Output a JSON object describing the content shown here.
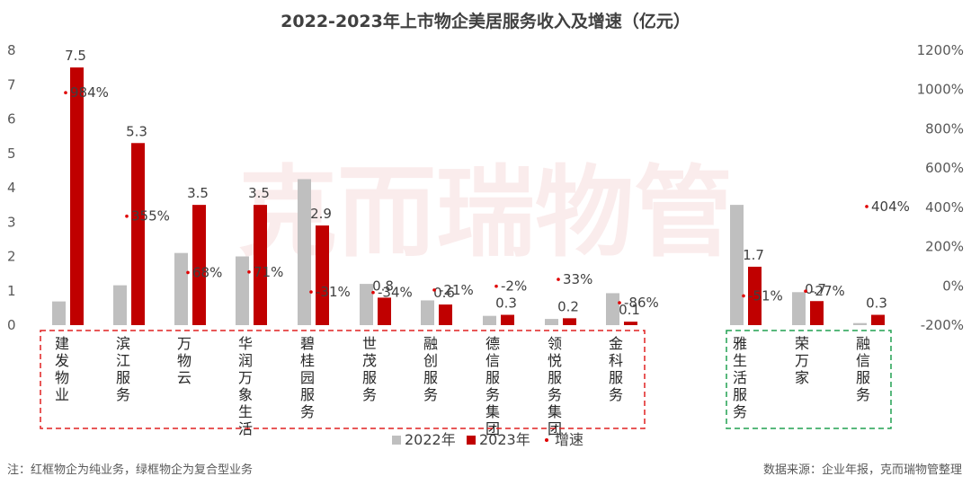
{
  "chart_data": {
    "type": "bar",
    "title": "2022-2023年上市物企美居服务收入及增速（亿元）",
    "watermark": "克而瑞物管",
    "categories": [
      "建发物业",
      "滨江服务",
      "万物云",
      "华润万象生活",
      "碧桂园服务",
      "世茂服务",
      "融创服务",
      "德信服务集团",
      "领悦服务集团",
      "金科服务",
      "雅生活服务",
      "荣万家",
      "融信服务"
    ],
    "groups": [
      {
        "name": "红框物企",
        "categories": [
          "建发物业",
          "滨江服务",
          "万物云",
          "华润万象生活",
          "碧桂园服务",
          "世茂服务",
          "融创服务",
          "德信服务集团",
          "领悦服务集团",
          "金科服务"
        ],
        "border_color": "#e02020"
      },
      {
        "name": "绿框物企",
        "categories": [
          "雅生活服务",
          "荣万家",
          "融信服务"
        ],
        "border_color": "#20a050"
      }
    ],
    "series": [
      {
        "name": "2022年",
        "color": "#bfbfbf",
        "values": [
          0.69,
          1.16,
          2.1,
          2.0,
          4.25,
          1.2,
          0.72,
          0.27,
          0.18,
          0.93,
          3.5,
          0.96,
          0.06
        ]
      },
      {
        "name": "2023年",
        "color": "#c00000",
        "values": [
          7.5,
          5.3,
          3.5,
          3.5,
          2.9,
          0.8,
          0.6,
          0.3,
          0.2,
          0.1,
          1.7,
          0.7,
          0.3
        ]
      }
    ],
    "value_labels": [
      "7.5",
      "5.3",
      "3.5",
      "3.5",
      "2.9",
      "0.8",
      "0.6",
      "0.3",
      "0.2",
      "0.1",
      "1.7",
      "0.7",
      "0.3"
    ],
    "growth": {
      "name": "增速",
      "color": "#e00000",
      "values": [
        984,
        355,
        68,
        71,
        -31,
        -34,
        -21,
        -2,
        33,
        -86,
        -51,
        -27,
        404
      ],
      "labels": [
        "984%",
        "355%",
        "68%",
        "71%",
        "-31%",
        "-34%",
        "-21%",
        "-2%",
        "33%",
        "-86%",
        "-51%",
        "-27%",
        "404%"
      ]
    },
    "y_left": {
      "min": 0,
      "max": 8,
      "ticks": [
        "0",
        "1",
        "2",
        "3",
        "4",
        "5",
        "6",
        "7",
        "8"
      ]
    },
    "y_right": {
      "min": -200,
      "max": 1200,
      "ticks": [
        "-200%",
        "0%",
        "200%",
        "400%",
        "600%",
        "800%",
        "1000%",
        "1200%"
      ]
    },
    "legend": {
      "position": "bottom",
      "items": [
        "2022年",
        "2023年",
        "增速"
      ]
    },
    "grid": false
  },
  "footer": {
    "note": "注：红框物企为纯业务，绿框物企为复合型业务",
    "source": "数据来源：企业年报，克而瑞物管整理"
  }
}
